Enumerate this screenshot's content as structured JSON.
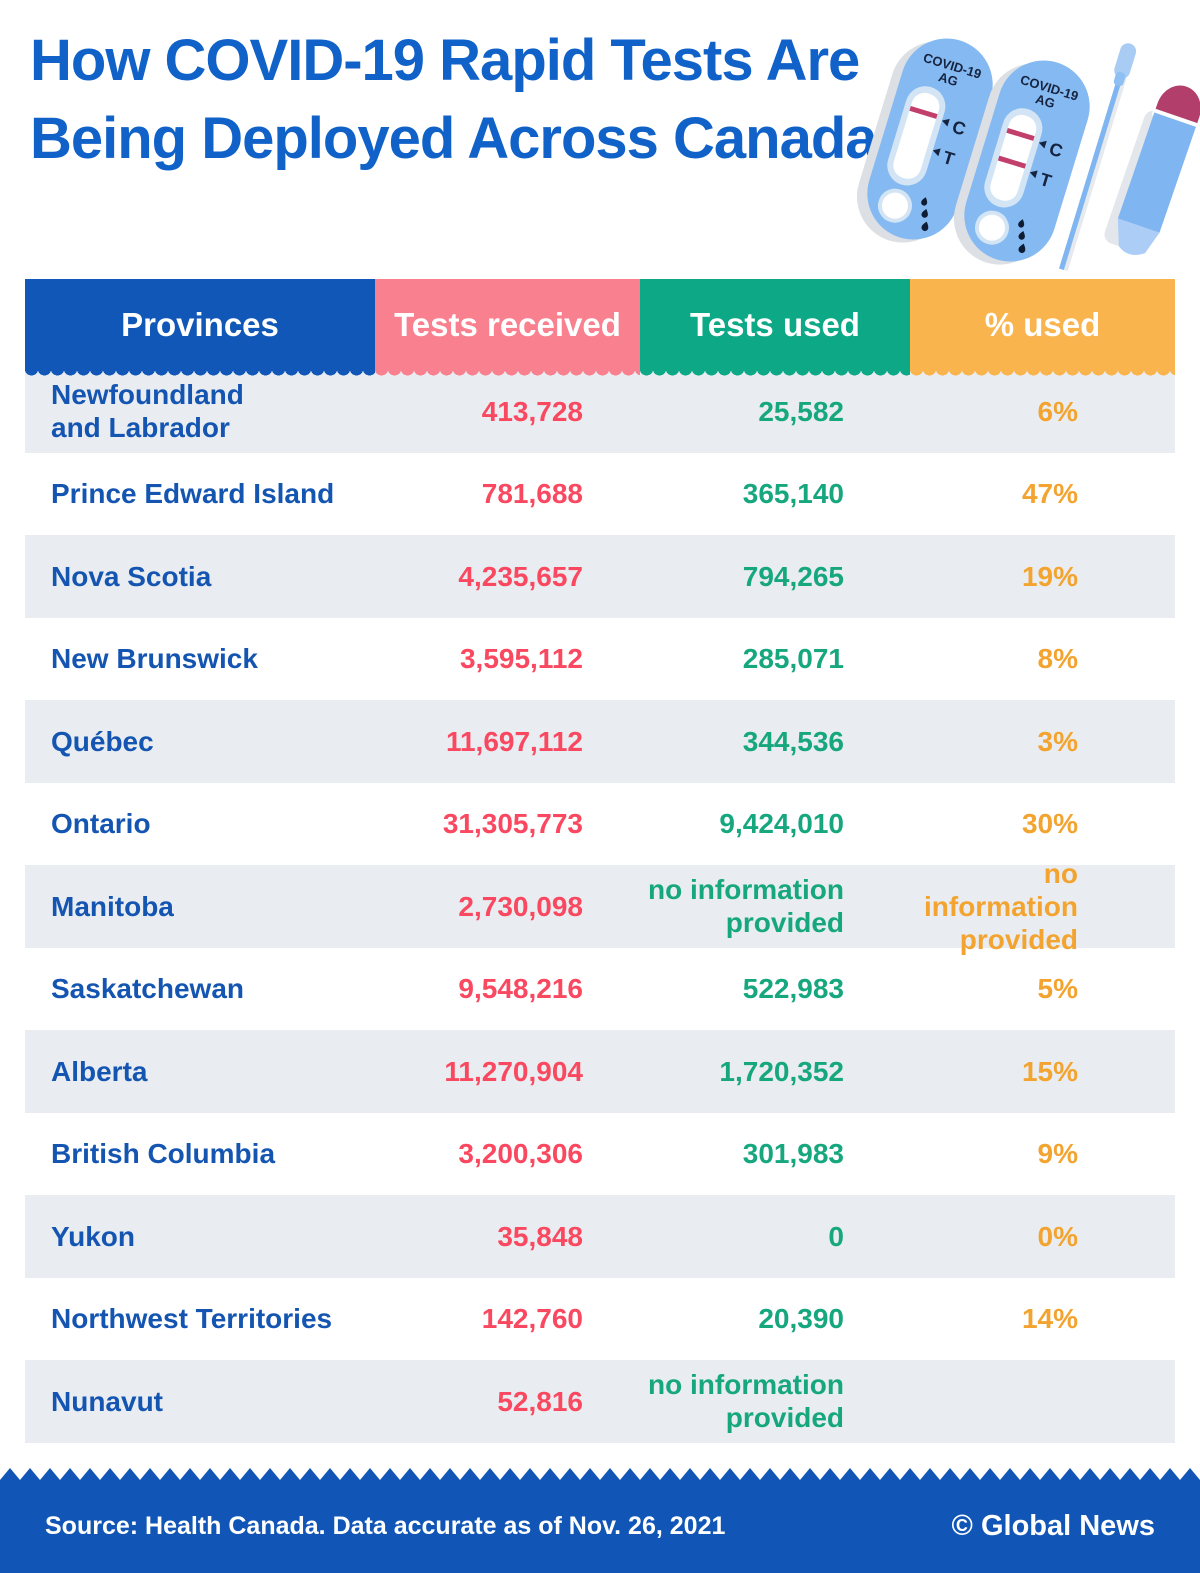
{
  "title": "How COVID-19 Rapid Tests Are Being Deployed Across Canada",
  "illustration": {
    "cassette_line1": "COVID-19",
    "cassette_line2": "AG",
    "control_marker": "C",
    "test_marker": "T"
  },
  "table": {
    "columns": [
      {
        "label": "Provinces",
        "color": "#1157b7"
      },
      {
        "label": "Tests received",
        "color": "#f8808f"
      },
      {
        "label": "Tests used",
        "color": "#0da886"
      },
      {
        "label": "% used",
        "color": "#f9b44e"
      }
    ],
    "rows": [
      {
        "province": "Newfoundland\nand Labrador",
        "received": "413,728",
        "used": "25,582",
        "pct": "6%"
      },
      {
        "province": "Prince Edward Island",
        "received": "781,688",
        "used": "365,140",
        "pct": "47%"
      },
      {
        "province": "Nova Scotia",
        "received": "4,235,657",
        "used": "794,265",
        "pct": "19%"
      },
      {
        "province": "New Brunswick",
        "received": "3,595,112",
        "used": "285,071",
        "pct": "8%"
      },
      {
        "province": "Québec",
        "received": "11,697,112",
        "used": "344,536",
        "pct": "3%"
      },
      {
        "province": "Ontario",
        "received": "31,305,773",
        "used": "9,424,010",
        "pct": "30%"
      },
      {
        "province": "Manitoba",
        "received": "2,730,098",
        "used": "no information\nprovided",
        "pct": "no information\nprovided"
      },
      {
        "province": "Saskatchewan",
        "received": "9,548,216",
        "used": "522,983",
        "pct": "5%"
      },
      {
        "province": "Alberta",
        "received": "11,270,904",
        "used": "1,720,352",
        "pct": "15%"
      },
      {
        "province": "British Columbia",
        "received": "3,200,306",
        "used": "301,983",
        "pct": "9%"
      },
      {
        "province": "Yukon",
        "received": "35,848",
        "used": "0",
        "pct": "0%"
      },
      {
        "province": "Northwest Territories",
        "received": "142,760",
        "used": "20,390",
        "pct": "14%"
      },
      {
        "province": "Nunavut",
        "received": "52,816",
        "used": "no information\nprovided",
        "pct": ""
      }
    ]
  },
  "chart_data": {
    "type": "table",
    "title": "How COVID-19 Rapid Tests Are Being Deployed Across Canada",
    "columns": [
      "Provinces",
      "Tests received",
      "Tests used",
      "% used"
    ],
    "rows": [
      [
        "Newfoundland and Labrador",
        413728,
        25582,
        "6%"
      ],
      [
        "Prince Edward Island",
        781688,
        365140,
        "47%"
      ],
      [
        "Nova Scotia",
        4235657,
        794265,
        "19%"
      ],
      [
        "New Brunswick",
        3595112,
        285071,
        "8%"
      ],
      [
        "Québec",
        11697112,
        344536,
        "3%"
      ],
      [
        "Ontario",
        31305773,
        9424010,
        "30%"
      ],
      [
        "Manitoba",
        2730098,
        "no information provided",
        "no information provided"
      ],
      [
        "Saskatchewan",
        9548216,
        522983,
        "5%"
      ],
      [
        "Alberta",
        11270904,
        1720352,
        "15%"
      ],
      [
        "British Columbia",
        3200306,
        301983,
        "9%"
      ],
      [
        "Yukon",
        35848,
        0,
        "0%"
      ],
      [
        "Northwest Territories",
        142760,
        20390,
        "14%"
      ],
      [
        "Nunavut",
        52816,
        "no information provided",
        ""
      ]
    ]
  },
  "footer": {
    "source": "Source: Health Canada. Data accurate as of Nov. 26, 2021",
    "credit": "© Global News"
  },
  "colors": {
    "title_blue": "#1062c8",
    "header_blue": "#1157b7",
    "header_pink": "#f8808f",
    "header_green": "#0da886",
    "header_orange": "#f9b44e",
    "footer_blue": "#1156b6",
    "row_gray": "#e9edf1",
    "province_blue": "#1555b2",
    "value_red": "#f9485f",
    "value_green": "#17a77f",
    "value_orange": "#f3a430"
  }
}
